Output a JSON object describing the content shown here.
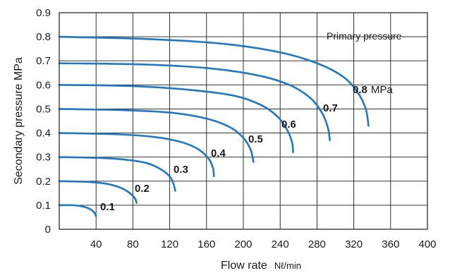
{
  "chart_data": {
    "type": "line",
    "xlabel": "Flow rate",
    "xunit": "Nℓ/min",
    "ylabel": "Secondary pressure  MPa",
    "xlim": [
      0,
      400
    ],
    "ylim": [
      0,
      0.9
    ],
    "x_ticks": [
      "40",
      "80",
      "120",
      "160",
      "200",
      "240",
      "280",
      "320",
      "360",
      "400"
    ],
    "y_ticks": [
      "0",
      "0.1",
      "0.2",
      "0.3",
      "0.4",
      "0.5",
      "0.6",
      "0.7",
      "0.8",
      "0.9"
    ],
    "grid": true,
    "legend_title": "Primary pressure",
    "line_color": "#1f78c1",
    "series": [
      {
        "name": "0.1",
        "unit": "",
        "points": [
          [
            0,
            0.1
          ],
          [
            15,
            0.1
          ],
          [
            25,
            0.095
          ],
          [
            33,
            0.085
          ],
          [
            38,
            0.07
          ],
          [
            40,
            0.055
          ]
        ]
      },
      {
        "name": "0.2",
        "unit": "",
        "points": [
          [
            0,
            0.2
          ],
          [
            30,
            0.197
          ],
          [
            50,
            0.19
          ],
          [
            65,
            0.175
          ],
          [
            75,
            0.155
          ],
          [
            82,
            0.13
          ],
          [
            84,
            0.11
          ]
        ]
      },
      {
        "name": "0.3",
        "unit": "",
        "points": [
          [
            0,
            0.3
          ],
          [
            40,
            0.297
          ],
          [
            70,
            0.29
          ],
          [
            95,
            0.275
          ],
          [
            110,
            0.25
          ],
          [
            120,
            0.22
          ],
          [
            124,
            0.19
          ],
          [
            126,
            0.16
          ]
        ]
      },
      {
        "name": "0.4",
        "unit": "",
        "points": [
          [
            0,
            0.4
          ],
          [
            60,
            0.395
          ],
          [
            100,
            0.385
          ],
          [
            130,
            0.365
          ],
          [
            150,
            0.335
          ],
          [
            162,
            0.295
          ],
          [
            167,
            0.255
          ],
          [
            168,
            0.22
          ]
        ]
      },
      {
        "name": "0.5",
        "unit": "",
        "points": [
          [
            0,
            0.5
          ],
          [
            70,
            0.495
          ],
          [
            120,
            0.485
          ],
          [
            160,
            0.46
          ],
          [
            185,
            0.425
          ],
          [
            200,
            0.38
          ],
          [
            208,
            0.33
          ],
          [
            211,
            0.28
          ]
        ]
      },
      {
        "name": "0.6",
        "unit": "",
        "points": [
          [
            0,
            0.6
          ],
          [
            80,
            0.595
          ],
          [
            140,
            0.58
          ],
          [
            190,
            0.555
          ],
          [
            220,
            0.515
          ],
          [
            238,
            0.465
          ],
          [
            248,
            0.41
          ],
          [
            253,
            0.36
          ],
          [
            254,
            0.32
          ]
        ]
      },
      {
        "name": "0.7",
        "unit": "",
        "points": [
          [
            0,
            0.69
          ],
          [
            90,
            0.685
          ],
          [
            160,
            0.67
          ],
          [
            215,
            0.64
          ],
          [
            250,
            0.6
          ],
          [
            273,
            0.545
          ],
          [
            286,
            0.48
          ],
          [
            292,
            0.42
          ],
          [
            294,
            0.37
          ]
        ]
      },
      {
        "name": "0.8",
        "unit": "MPa",
        "points": [
          [
            0,
            0.8
          ],
          [
            100,
            0.79
          ],
          [
            180,
            0.77
          ],
          [
            240,
            0.735
          ],
          [
            280,
            0.69
          ],
          [
            308,
            0.635
          ],
          [
            324,
            0.57
          ],
          [
            333,
            0.5
          ],
          [
            336,
            0.43
          ]
        ]
      }
    ]
  }
}
